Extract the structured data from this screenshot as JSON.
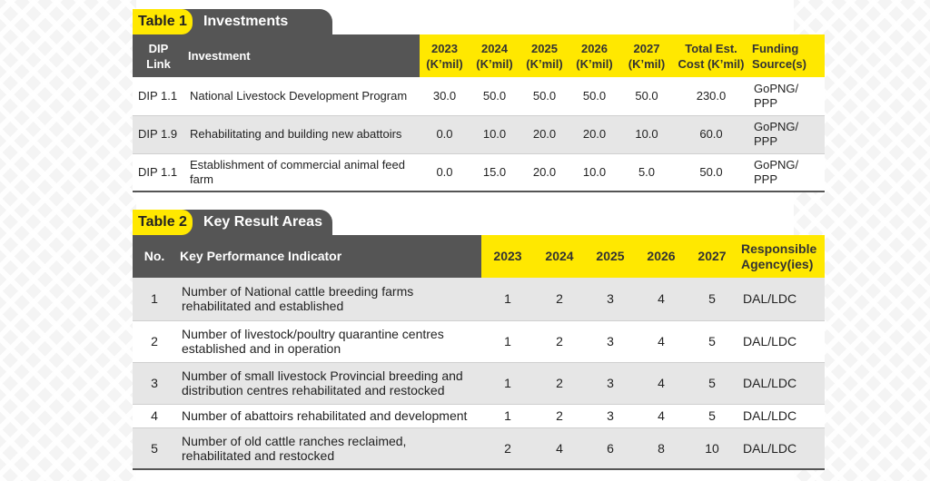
{
  "table1": {
    "tab_number": "Table 1",
    "tab_title": "Investments",
    "headers": {
      "dip_link": "DIP Link",
      "investment": "Investment",
      "y2023": "2023 (K’mil)",
      "y2024": "2024 (K’mil)",
      "y2025": "2025 (K’mil)",
      "y2026": "2026 (K’mil)",
      "y2027": "2027 (K’mil)",
      "total": "Total Est. Cost (K’mil)",
      "funding": "Funding Source(s)"
    },
    "rows": [
      {
        "dip": "DIP 1.1",
        "investment": "National Livestock Development Program",
        "y2023": "30.0",
        "y2024": "50.0",
        "y2025": "50.0",
        "y2026": "50.0",
        "y2027": "50.0",
        "total": "230.0",
        "funding": "GoPNG/ PPP"
      },
      {
        "dip": "DIP 1.9",
        "investment": "Rehabilitating and building new abattoirs",
        "y2023": "0.0",
        "y2024": "10.0",
        "y2025": "20.0",
        "y2026": "20.0",
        "y2027": "10.0",
        "total": "60.0",
        "funding": "GoPNG/ PPP"
      },
      {
        "dip": "DIP 1.1",
        "investment": "Establishment of commercial animal feed farm",
        "y2023": "0.0",
        "y2024": "15.0",
        "y2025": "20.0",
        "y2026": "10.0",
        "y2027": "5.0",
        "total": "50.0",
        "funding": "GoPNG/ PPP"
      }
    ]
  },
  "table2": {
    "tab_number": "Table 2",
    "tab_title": "Key Result Areas",
    "headers": {
      "no": "No.",
      "kpi": "Key Performance Indicator",
      "y2023": "2023",
      "y2024": "2024",
      "y2025": "2025",
      "y2026": "2026",
      "y2027": "2027",
      "agency": "Responsible Agency(ies)"
    },
    "rows": [
      {
        "no": "1",
        "kpi": "Number of National cattle breeding farms rehabilitated and established",
        "y2023": "1",
        "y2024": "2",
        "y2025": "3",
        "y2026": "4",
        "y2027": "5",
        "agency": "DAL/LDC"
      },
      {
        "no": "2",
        "kpi": "Number of livestock/poultry quarantine centres established and in operation",
        "y2023": "1",
        "y2024": "2",
        "y2025": "3",
        "y2026": "4",
        "y2027": "5",
        "agency": "DAL/LDC"
      },
      {
        "no": "3",
        "kpi": "Number of small livestock Provincial breeding and distribution centres rehabilitated and restocked",
        "y2023": "1",
        "y2024": "2",
        "y2025": "3",
        "y2026": "4",
        "y2027": "5",
        "agency": "DAL/LDC"
      },
      {
        "no": "4",
        "kpi": "Number of abattoirs rehabilitated and development",
        "y2023": "1",
        "y2024": "2",
        "y2025": "3",
        "y2026": "4",
        "y2027": "5",
        "agency": "DAL/LDC"
      },
      {
        "no": "5",
        "kpi": "Number of old cattle ranches reclaimed, rehabilitated and restocked",
        "y2023": "2",
        "y2024": "4",
        "y2025": "6",
        "y2026": "8",
        "y2027": "10",
        "agency": "DAL/LDC"
      }
    ]
  }
}
